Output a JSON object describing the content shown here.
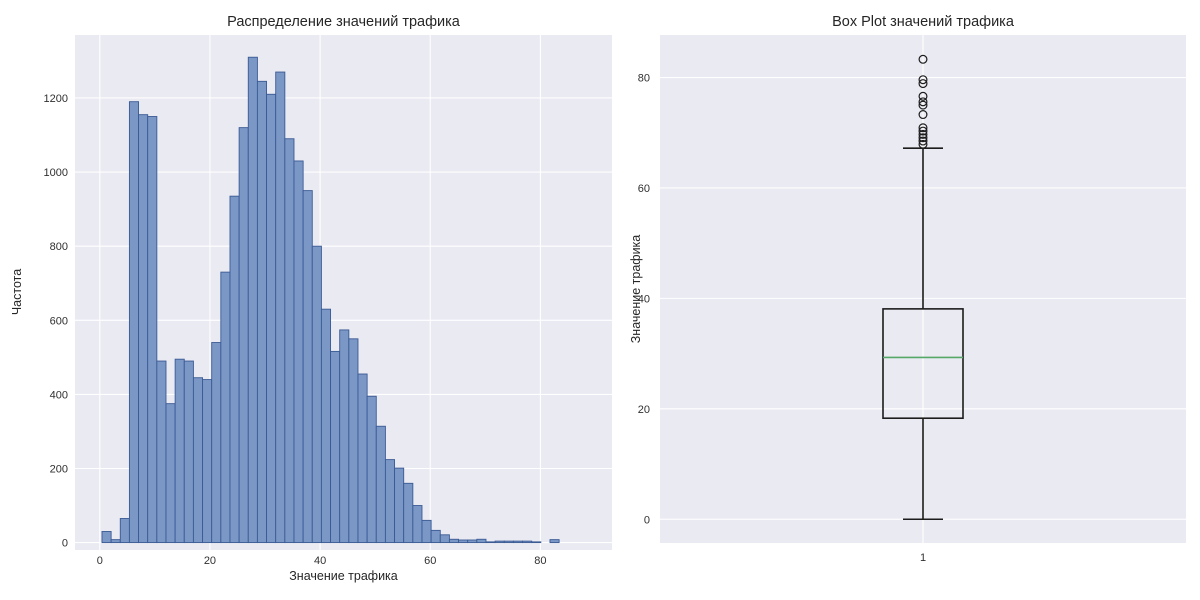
{
  "figure": {
    "background": "#ffffff",
    "axes_background": "#eaeaf2",
    "grid_color": "#ffffff"
  },
  "chart_data": [
    {
      "type": "bar",
      "subtype": "histogram",
      "title": "Распределение значений трафика",
      "xlabel": "Значение трафика",
      "ylabel": "Частота",
      "bin_start": 0.4,
      "bin_width": 1.66,
      "values": [
        30,
        8,
        65,
        1190,
        1155,
        1150,
        490,
        375,
        495,
        490,
        445,
        440,
        540,
        730,
        935,
        1120,
        1310,
        1245,
        1210,
        1270,
        1090,
        1030,
        950,
        800,
        630,
        516,
        574,
        550,
        455,
        395,
        314,
        224,
        201,
        160,
        100,
        60,
        33,
        21,
        9,
        7,
        7,
        9,
        2,
        4,
        4,
        4,
        4,
        2,
        0,
        8
      ],
      "xticks": [
        0,
        20,
        40,
        60,
        80
      ],
      "yticks": [
        0,
        200,
        400,
        600,
        800,
        1000,
        1200
      ],
      "xlim": [
        -4.5,
        93
      ],
      "ylim": [
        -20,
        1370
      ],
      "grid": true,
      "legend": false,
      "bar_fill": "#7b97c6",
      "bar_edge": "#3a5a94"
    },
    {
      "type": "boxplot",
      "title": "Box Plot значений трафика",
      "xlabel": "",
      "ylabel": "Значение трафика",
      "categories": [
        "1"
      ],
      "box": {
        "q1": 18.3,
        "median": 29.3,
        "q3": 38.1,
        "whisker_low": 0,
        "whisker_high": 67.2
      },
      "outliers": [
        67.9,
        68.5,
        69.1,
        69.7,
        70.3,
        70.9,
        73.3,
        75.0,
        75.6,
        76.6,
        78.9,
        79.6,
        83.3
      ],
      "yticks": [
        0,
        20,
        40,
        60,
        80
      ],
      "ylim": [
        -4.3,
        87.7
      ],
      "grid": true,
      "legend": false,
      "line_color": "#1c1c1c",
      "median_color": "#55a868"
    }
  ]
}
